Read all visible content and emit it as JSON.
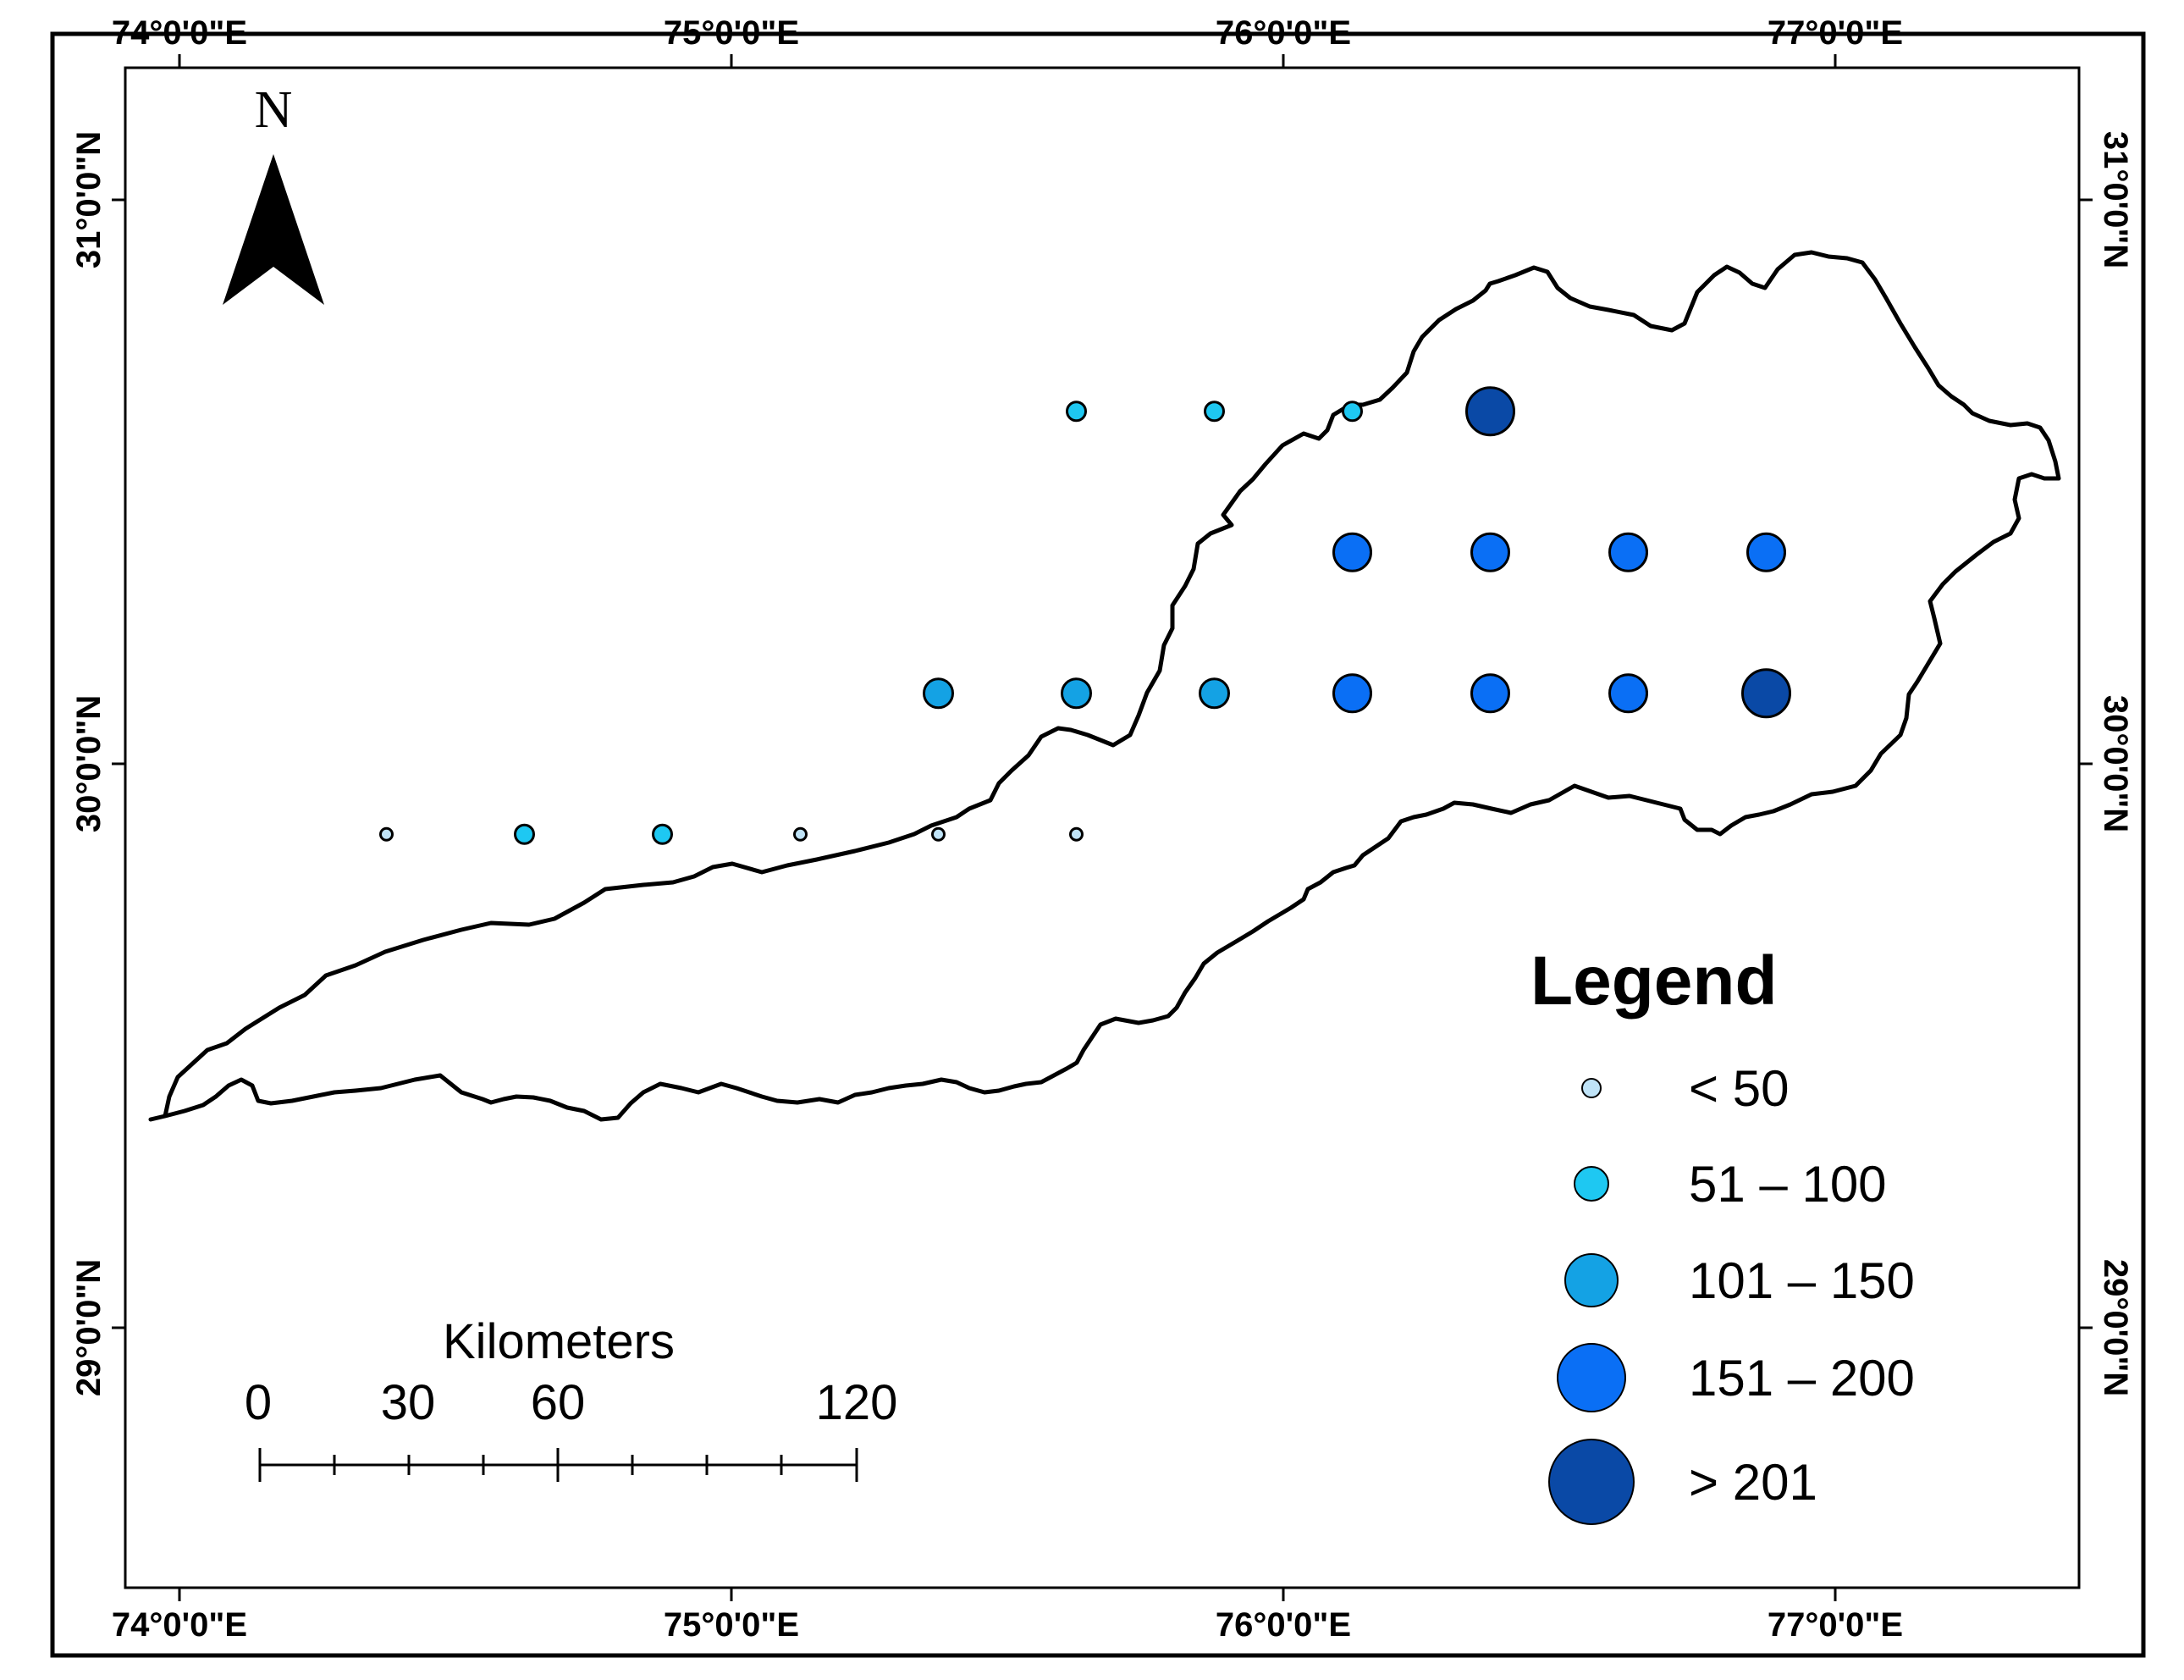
{
  "map": {
    "lon_labels": [
      "74°0'0\"E",
      "75°0'0\"E",
      "76°0'0\"E",
      "77°0'0\"E"
    ],
    "lat_labels": [
      "31°0'0\"N",
      "30°0'0\"N",
      "29°0'0\"N"
    ],
    "north_label": "N",
    "scale": {
      "title": "Kilometers",
      "labels": [
        "0",
        "30",
        "60",
        "120"
      ]
    },
    "legend": {
      "title": "Legend",
      "classes": [
        {
          "label": "< 50",
          "color": "#bfe3f7"
        },
        {
          "label": "51 – 100",
          "color": "#1ec8f2"
        },
        {
          "label": "101 – 150",
          "color": "#14a2e4"
        },
        {
          "label": "151 – 200",
          "color": "#0a6ff5"
        },
        {
          "label": "> 201",
          "color": "#0a49a6"
        }
      ]
    },
    "stations": [
      {
        "lon": 75.625,
        "lat": 30.625,
        "class": 1
      },
      {
        "lon": 75.875,
        "lat": 30.625,
        "class": 1
      },
      {
        "lon": 76.125,
        "lat": 30.625,
        "class": 1
      },
      {
        "lon": 76.375,
        "lat": 30.625,
        "class": 4
      },
      {
        "lon": 76.125,
        "lat": 30.375,
        "class": 3
      },
      {
        "lon": 76.375,
        "lat": 30.375,
        "class": 3
      },
      {
        "lon": 76.625,
        "lat": 30.375,
        "class": 3
      },
      {
        "lon": 76.875,
        "lat": 30.375,
        "class": 3
      },
      {
        "lon": 75.375,
        "lat": 30.125,
        "class": 2
      },
      {
        "lon": 75.625,
        "lat": 30.125,
        "class": 2
      },
      {
        "lon": 75.875,
        "lat": 30.125,
        "class": 2
      },
      {
        "lon": 76.125,
        "lat": 30.125,
        "class": 3
      },
      {
        "lon": 76.375,
        "lat": 30.125,
        "class": 3
      },
      {
        "lon": 76.625,
        "lat": 30.125,
        "class": 3
      },
      {
        "lon": 76.875,
        "lat": 30.125,
        "class": 4
      },
      {
        "lon": 74.375,
        "lat": 29.875,
        "class": 0
      },
      {
        "lon": 74.625,
        "lat": 29.875,
        "class": 1
      },
      {
        "lon": 74.875,
        "lat": 29.875,
        "class": 1
      },
      {
        "lon": 75.125,
        "lat": 29.875,
        "class": 0
      },
      {
        "lon": 75.375,
        "lat": 29.875,
        "class": 0
      },
      {
        "lon": 75.625,
        "lat": 29.875,
        "class": 0
      }
    ]
  }
}
